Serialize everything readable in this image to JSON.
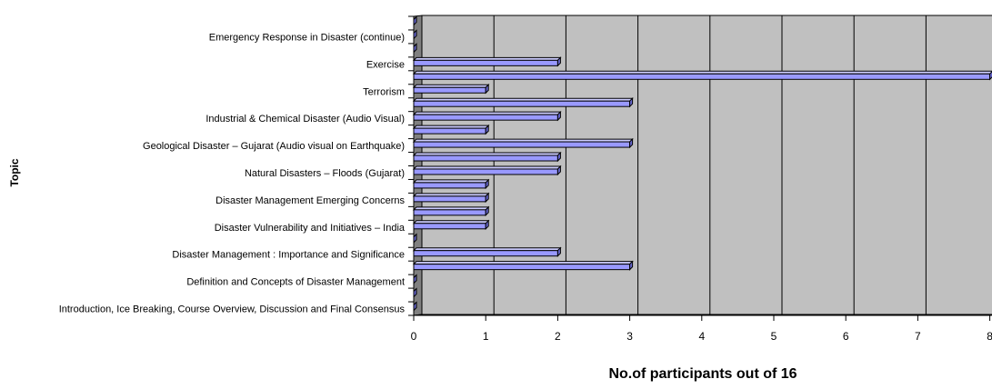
{
  "chart_data": {
    "type": "bar",
    "orientation": "horizontal",
    "style": "3d",
    "xlabel": "No.of participants out of 16",
    "ylabel": "Topic",
    "xlim": [
      0,
      8
    ],
    "x_ticks": [
      0,
      1,
      2,
      3,
      4,
      5,
      6,
      7,
      8
    ],
    "grid": "vertical",
    "bar_color": "#9999ff",
    "plot_color": "#c0c0c0",
    "categories": [
      "Introduction, Ice Breaking, Course Overview, Discussion and Final Consensus",
      "",
      "Definition and Concepts of Disaster Management",
      "",
      "Disaster Management : Importance and Significance",
      "",
      "Disaster Vulnerability and Initiatives – India",
      "",
      "Disaster Management Emerging Concerns",
      "",
      "Natural Disasters – Floods (Gujarat)",
      "",
      "Geological Disaster – Gujarat (Audio visual on Earthquake)",
      "",
      "Industrial & Chemical Disaster (Audio Visual)",
      "",
      "Terrorism",
      "",
      "Exercise",
      "",
      "Emergency  Response in Disaster (continue)",
      ""
    ],
    "values": [
      0,
      0,
      0,
      3,
      2,
      0,
      1,
      1,
      1,
      1,
      2,
      2,
      3,
      1,
      2,
      3,
      1,
      8,
      2,
      0,
      0,
      0
    ]
  }
}
